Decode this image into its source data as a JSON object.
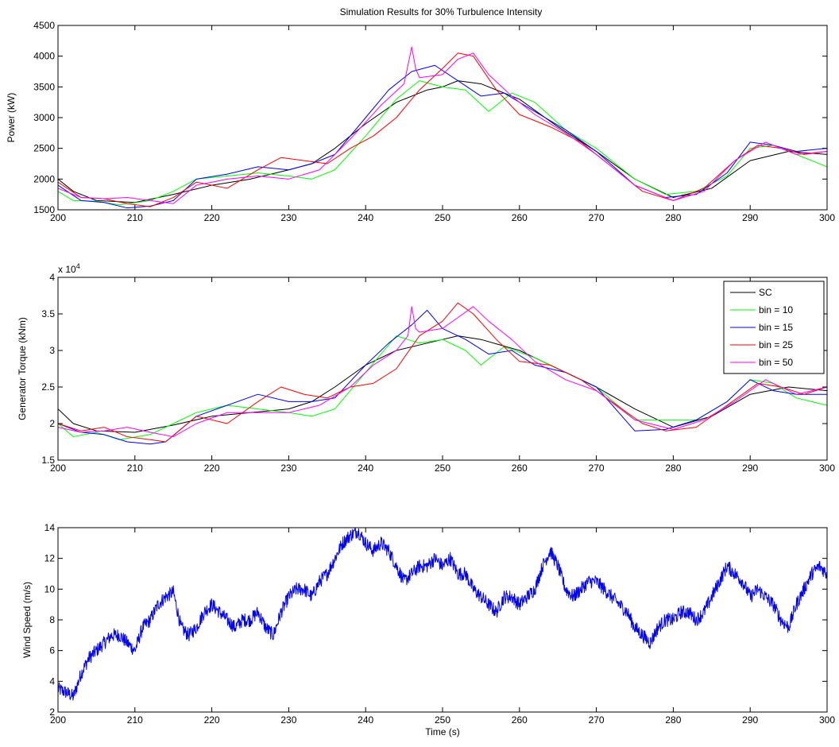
{
  "chart_data": [
    {
      "type": "line",
      "title": "Simulation Results for 30% Turbulence Intensity",
      "xlabel": "",
      "ylabel": "Power (kW)",
      "xlim": [
        200,
        300
      ],
      "ylim": [
        1500,
        4500
      ],
      "xticks": [
        200,
        210,
        220,
        230,
        240,
        250,
        260,
        270,
        280,
        290,
        300
      ],
      "yticks": [
        1500,
        2000,
        2500,
        3000,
        3500,
        4000,
        4500
      ],
      "grid": false,
      "series": [
        {
          "name": "SC",
          "color": "#000000",
          "x": [
            200,
            202,
            205,
            210,
            215,
            220,
            225,
            230,
            233,
            236,
            240,
            244,
            248,
            250,
            252,
            255,
            260,
            265,
            270,
            275,
            280,
            285,
            290,
            295,
            300
          ],
          "values": [
            2000,
            1800,
            1650,
            1620,
            1750,
            1900,
            2000,
            2150,
            2250,
            2500,
            2900,
            3250,
            3450,
            3500,
            3600,
            3550,
            3300,
            2850,
            2450,
            2000,
            1700,
            1850,
            2300,
            2450,
            2400
          ]
        },
        {
          "name": "bin = 10",
          "color": "#00ff00",
          "x": [
            200,
            202,
            205,
            208,
            212,
            215,
            218,
            222,
            226,
            230,
            233,
            236,
            240,
            244,
            247,
            250,
            253,
            256,
            259,
            262,
            266,
            270,
            275,
            279,
            283,
            287,
            290,
            293,
            296,
            300
          ],
          "values": [
            1800,
            1650,
            1640,
            1580,
            1650,
            1800,
            2000,
            2050,
            2100,
            2050,
            2000,
            2150,
            2700,
            3300,
            3600,
            3500,
            3450,
            3100,
            3400,
            3250,
            2800,
            2500,
            2000,
            1750,
            1800,
            2050,
            2500,
            2550,
            2400,
            2200
          ]
        },
        {
          "name": "bin = 15",
          "color": "#0000ff",
          "x": [
            200,
            203,
            206,
            209,
            212,
            215,
            218,
            222,
            226,
            230,
            233,
            236,
            240,
            243,
            246,
            249,
            252,
            255,
            258,
            262,
            266,
            270,
            275,
            279,
            283,
            287,
            290,
            293,
            296,
            300
          ],
          "values": [
            1900,
            1650,
            1620,
            1530,
            1560,
            1650,
            2000,
            2080,
            2200,
            2150,
            2250,
            2400,
            3000,
            3450,
            3750,
            3850,
            3600,
            3350,
            3400,
            3100,
            2800,
            2450,
            1900,
            1700,
            1750,
            2100,
            2600,
            2550,
            2450,
            2500
          ]
        },
        {
          "name": "bin = 25",
          "color": "#ff0000",
          "x": [
            200,
            203,
            206,
            209,
            212,
            215,
            218,
            222,
            226,
            229,
            232,
            235,
            238,
            241,
            244,
            247,
            250,
            252,
            254,
            257,
            260,
            264,
            268,
            272,
            276,
            280,
            284,
            288,
            291,
            294,
            297,
            300
          ],
          "values": [
            1950,
            1700,
            1680,
            1600,
            1550,
            1700,
            1950,
            1850,
            2150,
            2350,
            2300,
            2250,
            2500,
            2700,
            3000,
            3450,
            3800,
            4050,
            4000,
            3450,
            3050,
            2850,
            2600,
            2200,
            1800,
            1650,
            1850,
            2300,
            2550,
            2500,
            2400,
            2450
          ]
        },
        {
          "name": "bin = 50",
          "color": "#ff00ff",
          "x": [
            200,
            203,
            206,
            209,
            212,
            215,
            218,
            222,
            226,
            230,
            234,
            238,
            242,
            245,
            246,
            246.5,
            247,
            250,
            252,
            254,
            256,
            259,
            262,
            266,
            270,
            275,
            280,
            284,
            288,
            292,
            296,
            300
          ],
          "values": [
            1850,
            1700,
            1680,
            1700,
            1650,
            1600,
            1900,
            2000,
            2050,
            2000,
            2150,
            2650,
            3200,
            3550,
            4150,
            3800,
            3650,
            3700,
            3950,
            4050,
            3700,
            3350,
            3050,
            2750,
            2400,
            1900,
            1650,
            1800,
            2300,
            2600,
            2400,
            2450
          ]
        }
      ]
    },
    {
      "type": "line",
      "title": "",
      "xlabel": "",
      "ylabel": "Generator Torque (kNm)",
      "yexponent": "x 10",
      "yexponent_power": "4",
      "xlim": [
        200,
        300
      ],
      "ylim": [
        1.5,
        4
      ],
      "xticks": [
        200,
        210,
        220,
        230,
        240,
        250,
        260,
        270,
        280,
        290,
        300
      ],
      "yticks": [
        1.5,
        2,
        2.5,
        3,
        3.5,
        4
      ],
      "grid": false,
      "legend_position": "top-right",
      "series": [
        {
          "name": "SC",
          "color": "#000000",
          "x": [
            200,
            202,
            205,
            210,
            215,
            220,
            225,
            230,
            233,
            236,
            240,
            244,
            248,
            250,
            252,
            255,
            260,
            265,
            270,
            275,
            280,
            285,
            290,
            295,
            300
          ],
          "values": [
            2.2,
            2.0,
            1.9,
            1.88,
            1.98,
            2.1,
            2.15,
            2.2,
            2.3,
            2.5,
            2.8,
            3.0,
            3.1,
            3.15,
            3.2,
            3.15,
            3.0,
            2.75,
            2.5,
            2.2,
            1.95,
            2.1,
            2.4,
            2.5,
            2.45
          ]
        },
        {
          "name": "bin = 10",
          "color": "#00ff00",
          "x": [
            200,
            202,
            205,
            208,
            212,
            215,
            218,
            222,
            226,
            230,
            233,
            236,
            240,
            244,
            247,
            250,
            253,
            255,
            258,
            262,
            266,
            270,
            275,
            279,
            283,
            287,
            290,
            293,
            296,
            300
          ],
          "values": [
            2.0,
            1.82,
            1.88,
            1.78,
            1.85,
            2.0,
            2.15,
            2.25,
            2.2,
            2.15,
            2.1,
            2.2,
            2.7,
            3.2,
            3.1,
            3.15,
            3.0,
            2.8,
            3.05,
            2.9,
            2.7,
            2.5,
            2.05,
            2.05,
            2.05,
            2.3,
            2.6,
            2.55,
            2.35,
            2.25
          ]
        },
        {
          "name": "bin = 15",
          "color": "#0000ff",
          "x": [
            200,
            203,
            206,
            209,
            212,
            214,
            218,
            222,
            226,
            230,
            233,
            236,
            240,
            243,
            246,
            248,
            250,
            253,
            256,
            259,
            262,
            266,
            270,
            275,
            279,
            283,
            287,
            290,
            293,
            296,
            300
          ],
          "values": [
            2.0,
            1.88,
            1.85,
            1.75,
            1.72,
            1.75,
            2.1,
            2.25,
            2.4,
            2.3,
            2.3,
            2.35,
            2.8,
            3.1,
            3.35,
            3.55,
            3.3,
            3.15,
            2.95,
            3.0,
            2.8,
            2.7,
            2.5,
            1.9,
            1.92,
            2.05,
            2.3,
            2.6,
            2.45,
            2.4,
            2.4
          ]
        },
        {
          "name": "bin = 25",
          "color": "#ff0000",
          "x": [
            200,
            203,
            206,
            209,
            212,
            214,
            218,
            222,
            226,
            229,
            232,
            235,
            238,
            241,
            244,
            247,
            250,
            252,
            254,
            257,
            260,
            264,
            268,
            272,
            276,
            279,
            283,
            287,
            291,
            294,
            297,
            300
          ],
          "values": [
            2.0,
            1.9,
            1.95,
            1.82,
            1.78,
            1.75,
            2.1,
            2.0,
            2.3,
            2.5,
            2.4,
            2.35,
            2.5,
            2.55,
            2.75,
            3.2,
            3.4,
            3.65,
            3.5,
            3.15,
            2.85,
            2.8,
            2.6,
            2.3,
            2.0,
            1.9,
            1.95,
            2.25,
            2.55,
            2.5,
            2.4,
            2.5
          ]
        },
        {
          "name": "bin = 50",
          "color": "#ff00ff",
          "x": [
            200,
            203,
            206,
            209,
            212,
            215,
            218,
            222,
            226,
            230,
            234,
            238,
            241,
            244,
            245.5,
            246,
            246.5,
            247,
            250,
            252,
            254,
            256,
            259,
            262,
            266,
            270,
            275,
            280,
            284,
            288,
            292,
            296,
            300
          ],
          "values": [
            1.95,
            1.88,
            1.9,
            1.95,
            1.88,
            1.82,
            2.0,
            2.15,
            2.15,
            2.15,
            2.25,
            2.5,
            2.8,
            3.0,
            3.2,
            3.6,
            3.3,
            3.25,
            3.3,
            3.45,
            3.6,
            3.4,
            3.15,
            2.85,
            2.6,
            2.45,
            2.05,
            1.92,
            2.05,
            2.3,
            2.6,
            2.4,
            2.5
          ]
        }
      ]
    },
    {
      "type": "line",
      "title": "",
      "xlabel": "Time (s)",
      "ylabel": "Wind Speed (m/s)",
      "xlim": [
        200,
        300
      ],
      "ylim": [
        2,
        14
      ],
      "xticks": [
        200,
        210,
        220,
        230,
        240,
        250,
        260,
        270,
        280,
        290,
        300
      ],
      "yticks": [
        2,
        4,
        6,
        8,
        10,
        12,
        14
      ],
      "grid": false,
      "series": [
        {
          "name": "",
          "color": "#0000ff",
          "x": [
            200,
            201,
            202,
            203,
            204,
            205,
            206,
            207,
            208,
            209,
            210,
            211,
            212,
            213,
            214,
            215,
            216,
            217,
            218,
            219,
            220,
            221,
            222,
            223,
            224,
            225,
            226,
            227,
            228,
            229,
            230,
            231,
            232,
            233,
            234,
            235,
            236,
            237,
            238,
            239,
            240,
            241,
            242,
            243,
            244,
            245,
            246,
            247,
            248,
            249,
            250,
            251,
            252,
            253,
            254,
            255,
            256,
            257,
            258,
            259,
            260,
            261,
            262,
            263,
            264,
            265,
            266,
            267,
            268,
            269,
            270,
            271,
            272,
            273,
            274,
            275,
            276,
            277,
            278,
            279,
            280,
            281,
            282,
            283,
            284,
            285,
            286,
            287,
            288,
            289,
            290,
            291,
            292,
            293,
            294,
            295,
            296,
            297,
            298,
            299,
            300
          ],
          "values": [
            3.5,
            3.3,
            3.0,
            4.5,
            5.5,
            6.0,
            6.5,
            7.0,
            7.0,
            6.5,
            6.0,
            7.5,
            8.0,
            9.0,
            9.5,
            9.8,
            7.5,
            7.0,
            7.5,
            8.5,
            9.0,
            8.5,
            8.0,
            7.5,
            8.0,
            8.0,
            8.5,
            7.5,
            7.0,
            8.5,
            9.5,
            10.0,
            10.0,
            9.5,
            10.5,
            11.0,
            12.0,
            13.0,
            13.5,
            13.8,
            13.0,
            12.5,
            13.0,
            12.5,
            11.5,
            10.5,
            11.0,
            11.5,
            11.5,
            12.0,
            11.5,
            12.0,
            11.0,
            11.0,
            10.0,
            9.5,
            9.0,
            8.5,
            9.5,
            9.5,
            9.0,
            9.5,
            10.0,
            11.5,
            12.5,
            11.5,
            10.0,
            9.5,
            10.0,
            10.5,
            10.5,
            10.0,
            9.5,
            9.0,
            8.5,
            7.5,
            7.0,
            6.5,
            7.5,
            8.0,
            8.0,
            8.5,
            8.5,
            8.0,
            8.5,
            9.5,
            10.5,
            11.5,
            11.0,
            10.5,
            9.5,
            10.0,
            9.5,
            9.0,
            8.0,
            7.5,
            9.0,
            10.0,
            11.0,
            11.5,
            11.0
          ]
        }
      ]
    }
  ]
}
